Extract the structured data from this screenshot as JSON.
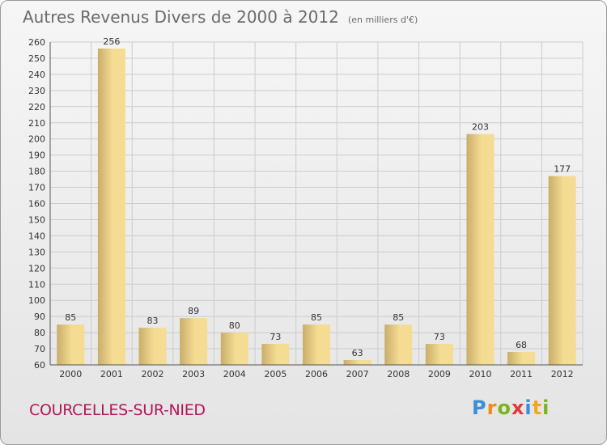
{
  "title": "Autres Revenus Divers de 2000 à 2012",
  "subtitle": "(en milliers d'€)",
  "commune": "COURCELLES-SUR-NIED",
  "logo": {
    "letters": [
      "P",
      "r",
      "o",
      "x",
      "i",
      "t",
      "i"
    ],
    "colors": [
      "#3a8fd8",
      "#f08a1d",
      "#7ab51d",
      "#e03b3b",
      "#3a8fd8",
      "#f0a81d",
      "#7ab51d"
    ]
  },
  "colors": {
    "bar_light": "#f5dc93",
    "bar_dark": "#c9ae6a",
    "grid": "#cccccc",
    "axis_text": "#333333"
  },
  "chart_data": {
    "type": "bar",
    "categories": [
      "2000",
      "2001",
      "2002",
      "2003",
      "2004",
      "2005",
      "2006",
      "2007",
      "2008",
      "2009",
      "2010",
      "2011",
      "2012"
    ],
    "values": [
      85,
      256,
      83,
      89,
      80,
      73,
      85,
      63,
      85,
      73,
      203,
      68,
      177
    ],
    "ylim": [
      60,
      260
    ],
    "yticks": [
      60,
      70,
      80,
      90,
      100,
      110,
      120,
      130,
      140,
      150,
      160,
      170,
      180,
      190,
      200,
      210,
      220,
      230,
      240,
      250,
      260
    ],
    "grid": true,
    "data_labels": true
  }
}
